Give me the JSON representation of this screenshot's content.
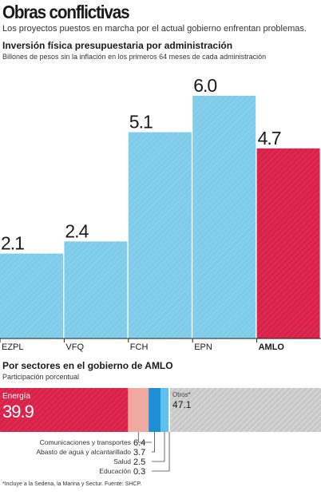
{
  "title": "Obras conflictivas",
  "subtitle": "Los proyectos puestos en marcha por el actual gobierno enfrentan problemas.",
  "footnote": "*Incluye a la Sedena, la Marina y Sectur. Fuente: SHCP.",
  "colors": {
    "highlight": "#d9214a",
    "bar": "#7ecbea",
    "other": "#c8c8c8",
    "segment_a": "#f0a9a0",
    "segment_b": "#1c8fd6",
    "segment_c": "#5fc0ec"
  },
  "chart_data": [
    {
      "type": "bar",
      "title": "Inversión física presupuestaria por administración",
      "subtitle": "Billones de pesos sin la inflación en los primeros 64 meses de cada administración",
      "categories": [
        "EZPL",
        "VFQ",
        "FCH",
        "EPN",
        "AMLO"
      ],
      "values": [
        2.1,
        2.4,
        5.1,
        6.0,
        4.7
      ],
      "value_labels": [
        "2.1",
        "2.4",
        "5.1",
        "6.0",
        "4.7"
      ],
      "highlight": "AMLO",
      "ylim": [
        0,
        6.6
      ],
      "grid": false
    },
    {
      "type": "bar",
      "stacked": true,
      "orientation": "horizontal",
      "title": "Por sectores en el gobierno de AMLO",
      "subtitle": "Participación porcentual",
      "segments": [
        {
          "name": "Energía",
          "value": 39.9,
          "label": "39.9"
        },
        {
          "name": "Comunicaciones y transportes",
          "value": 6.4,
          "label": "6.4"
        },
        {
          "name": "Abasto de agua y alcantarillado",
          "value": 3.7,
          "label": "3.7"
        },
        {
          "name": "Salud",
          "value": 2.5,
          "label": "2.5"
        },
        {
          "name": "Educación",
          "value": 0.3,
          "label": "0.3"
        },
        {
          "name": "Otros*",
          "value": 47.1,
          "label": "47.1"
        }
      ]
    }
  ]
}
